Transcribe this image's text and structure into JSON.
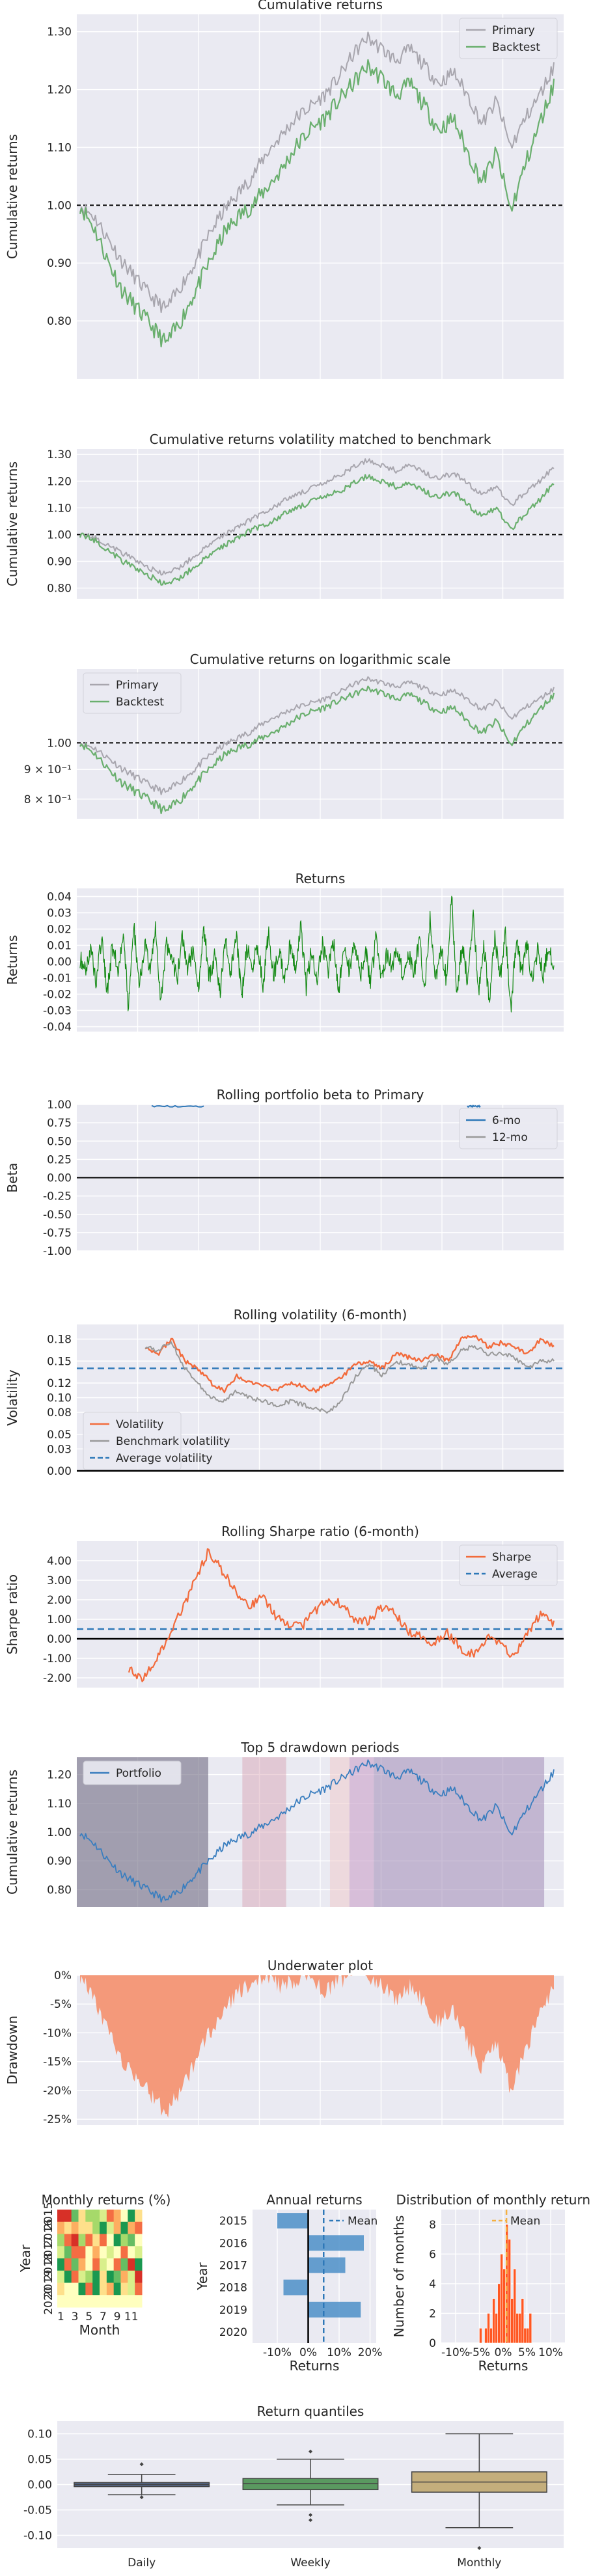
{
  "colors": {
    "primary": "#a8a6ae",
    "backtest": "#6aaf6e",
    "returns": "#148a14",
    "volatility": "#f26b3c",
    "benchmark_vol": "#999999",
    "average": "#2e78b8",
    "portfolio": "#3a7ebf",
    "underwater": "#f4997a",
    "hist": "#ff5722",
    "box_daily": "#55678a",
    "box_weekly": "#5a9960",
    "box_monthly": "#c4ae7c"
  },
  "chart_data": [
    {
      "type": "line",
      "title": "Cumulative returns",
      "ylabel": "Cumulative returns",
      "ylim": [
        0.7,
        1.33
      ],
      "yticks": [
        0.8,
        0.9,
        1.0,
        1.1,
        1.2,
        1.3
      ],
      "ytick_labels": [
        "0.80",
        "0.90",
        "1.00",
        "1.10",
        "1.20",
        "1.30"
      ],
      "hline": 1.0,
      "legend": "top-right",
      "series": [
        {
          "name": "Primary",
          "color": "primary",
          "values": [
            1.0,
            0.98,
            0.94,
            0.9,
            0.87,
            0.84,
            0.82,
            0.86,
            0.9,
            0.95,
            0.99,
            1.02,
            1.05,
            1.09,
            1.12,
            1.15,
            1.17,
            1.19,
            1.22,
            1.26,
            1.29,
            1.27,
            1.25,
            1.27,
            1.24,
            1.21,
            1.23,
            1.19,
            1.14,
            1.18,
            1.1,
            1.15,
            1.19,
            1.24
          ]
        },
        {
          "name": "Backtest",
          "color": "backtest",
          "values": [
            1.0,
            0.96,
            0.9,
            0.85,
            0.82,
            0.79,
            0.76,
            0.8,
            0.85,
            0.9,
            0.95,
            0.98,
            1.0,
            1.03,
            1.06,
            1.1,
            1.13,
            1.15,
            1.18,
            1.21,
            1.24,
            1.22,
            1.19,
            1.21,
            1.17,
            1.13,
            1.15,
            1.09,
            1.04,
            1.09,
            0.99,
            1.07,
            1.14,
            1.21
          ]
        }
      ]
    },
    {
      "type": "line",
      "title": "Cumulative returns volatility matched to benchmark",
      "ylabel": "Cumulative returns",
      "ylim": [
        0.76,
        1.32
      ],
      "yticks": [
        0.8,
        0.9,
        1.0,
        1.1,
        1.2,
        1.3
      ],
      "ytick_labels": [
        "0.80",
        "0.90",
        "1.00",
        "1.10",
        "1.20",
        "1.30"
      ],
      "hline": 1.0,
      "series": [
        {
          "name": "Primary",
          "color": "primary",
          "values": [
            1.0,
            0.99,
            0.96,
            0.93,
            0.9,
            0.87,
            0.85,
            0.88,
            0.92,
            0.96,
            1.0,
            1.03,
            1.06,
            1.09,
            1.12,
            1.15,
            1.17,
            1.19,
            1.22,
            1.25,
            1.28,
            1.26,
            1.24,
            1.26,
            1.23,
            1.21,
            1.23,
            1.19,
            1.15,
            1.18,
            1.11,
            1.16,
            1.2,
            1.25
          ]
        },
        {
          "name": "Backtest",
          "color": "backtest",
          "values": [
            1.0,
            0.98,
            0.94,
            0.9,
            0.87,
            0.84,
            0.81,
            0.84,
            0.88,
            0.92,
            0.96,
            0.99,
            1.02,
            1.04,
            1.07,
            1.1,
            1.12,
            1.14,
            1.16,
            1.19,
            1.22,
            1.2,
            1.18,
            1.19,
            1.16,
            1.14,
            1.16,
            1.11,
            1.07,
            1.1,
            1.02,
            1.08,
            1.13,
            1.19
          ]
        }
      ]
    },
    {
      "type": "line",
      "title": "Cumulative returns on logarithmic scale",
      "yscale": "log",
      "ylim": [
        0.74,
        1.34
      ],
      "yticks": [
        0.8,
        0.9,
        1.0
      ],
      "ytick_labels": [
        "8 × 10⁻¹",
        "9 × 10⁻¹",
        "1.00"
      ],
      "hline": 1.0,
      "legend": "top-left",
      "series": [
        {
          "name": "Primary",
          "color": "primary",
          "values": [
            1.0,
            0.98,
            0.94,
            0.9,
            0.87,
            0.84,
            0.82,
            0.86,
            0.9,
            0.95,
            0.99,
            1.02,
            1.05,
            1.09,
            1.12,
            1.15,
            1.17,
            1.19,
            1.22,
            1.26,
            1.29,
            1.27,
            1.25,
            1.27,
            1.24,
            1.21,
            1.23,
            1.19,
            1.14,
            1.18,
            1.1,
            1.15,
            1.19,
            1.24
          ]
        },
        {
          "name": "Backtest",
          "color": "backtest",
          "values": [
            1.0,
            0.96,
            0.9,
            0.85,
            0.82,
            0.79,
            0.76,
            0.8,
            0.85,
            0.9,
            0.95,
            0.98,
            1.0,
            1.03,
            1.06,
            1.1,
            1.13,
            1.15,
            1.18,
            1.21,
            1.24,
            1.22,
            1.19,
            1.21,
            1.17,
            1.13,
            1.15,
            1.09,
            1.04,
            1.09,
            0.99,
            1.07,
            1.14,
            1.21
          ]
        }
      ]
    },
    {
      "type": "line",
      "title": "Returns",
      "ylabel": "Returns",
      "ylim": [
        -0.043,
        0.045
      ],
      "yticks": [
        -0.04,
        -0.03,
        -0.02,
        -0.01,
        0.0,
        0.01,
        0.02,
        0.03,
        0.04
      ],
      "ytick_labels": [
        "-0.04",
        "-0.03",
        "-0.02",
        "-0.01",
        "0.00",
        "0.01",
        "0.02",
        "0.03",
        "0.04"
      ],
      "series": [
        {
          "name": "",
          "color": "returns",
          "values": [
            0.002,
            -0.005,
            0.008,
            -0.012,
            0.015,
            -0.02,
            0.01,
            -0.006,
            0.018,
            -0.03,
            0.022,
            -0.015,
            0.012,
            -0.008,
            0.02,
            -0.025,
            0.01,
            0.006,
            -0.012,
            0.014,
            -0.004,
            0.008,
            -0.015,
            0.02,
            -0.01,
            0.005,
            -0.018,
            0.012,
            -0.006,
            0.016,
            -0.022,
            0.01,
            -0.003,
            0.009,
            -0.014,
            0.018,
            -0.008,
            0.006,
            -0.012,
            0.01,
            -0.005,
            0.022,
            -0.016,
            0.008,
            -0.01,
            0.012,
            -0.007,
            0.014,
            -0.02,
            0.01,
            -0.006,
            0.012,
            -0.009,
            0.007,
            -0.013,
            0.016,
            -0.01,
            0.005,
            -0.004,
            0.009,
            -0.011,
            0.006,
            -0.008,
            0.013,
            -0.016,
            0.028,
            -0.012,
            0.008,
            -0.01,
            0.04,
            -0.02,
            0.012,
            -0.015,
            0.03,
            -0.018,
            0.01,
            -0.024,
            0.014,
            -0.01,
            0.018,
            -0.028,
            0.012,
            -0.006,
            0.01,
            -0.014,
            0.008,
            -0.01,
            0.012,
            -0.006
          ]
        }
      ]
    },
    {
      "type": "line",
      "title": "Rolling portfolio beta to Primary",
      "ylabel": "Beta",
      "ylim": [
        -1.0,
        1.0
      ],
      "yticks": [
        -1.0,
        -0.75,
        -0.5,
        -0.25,
        0.0,
        0.25,
        0.5,
        0.75,
        1.0
      ],
      "ytick_labels": [
        "-1.00",
        "-0.75",
        "-0.50",
        "-0.25",
        "0.00",
        "0.25",
        "0.50",
        "0.75",
        "1.00"
      ],
      "hline": 0.0,
      "legend": "top-right",
      "series": [
        {
          "name": "6-mo",
          "color": "average",
          "values": [
            0.98,
            0.97,
            0.99,
            0.98,
            0.97,
            0.98,
            0.99
          ]
        },
        {
          "name": "12-mo",
          "color": "benchmark_vol",
          "values": []
        }
      ]
    },
    {
      "type": "line",
      "title": "Rolling volatility (6-month)",
      "ylabel": "Volatility",
      "ylim": [
        0.0,
        0.2
      ],
      "yticks": [
        0.0,
        0.03,
        0.05,
        0.08,
        0.1,
        0.12,
        0.15,
        0.18
      ],
      "ytick_labels": [
        "0.00",
        "0.03",
        "0.05",
        "0.08",
        "0.10",
        "0.12",
        "0.15",
        "0.18"
      ],
      "hline": 0.14,
      "legend": "bottom-left",
      "series": [
        {
          "name": "Volatility",
          "color": "volatility",
          "values": [
            0.17,
            0.16,
            0.18,
            0.15,
            0.14,
            0.12,
            0.11,
            0.13,
            0.12,
            0.115,
            0.11,
            0.12,
            0.115,
            0.11,
            0.12,
            0.13,
            0.145,
            0.15,
            0.14,
            0.16,
            0.155,
            0.15,
            0.16,
            0.15,
            0.18,
            0.185,
            0.17,
            0.175,
            0.17,
            0.16,
            0.18,
            0.17
          ]
        },
        {
          "name": "Benchmark volatility",
          "color": "benchmark_vol",
          "values": [
            0.17,
            0.165,
            0.175,
            0.14,
            0.12,
            0.1,
            0.095,
            0.11,
            0.1,
            0.095,
            0.09,
            0.095,
            0.09,
            0.085,
            0.08,
            0.1,
            0.13,
            0.145,
            0.13,
            0.15,
            0.145,
            0.14,
            0.155,
            0.145,
            0.165,
            0.17,
            0.16,
            0.16,
            0.155,
            0.14,
            0.15,
            0.15
          ]
        },
        {
          "name": "Average volatility",
          "color": "average",
          "values": []
        }
      ]
    },
    {
      "type": "line",
      "title": "Rolling Sharpe ratio (6-month)",
      "ylabel": "Sharpe ratio",
      "ylim": [
        -2.5,
        5.0
      ],
      "yticks": [
        -2.0,
        -1.0,
        0.0,
        1.0,
        2.0,
        3.0,
        4.0
      ],
      "ytick_labels": [
        "-2.00",
        "-1.00",
        "0.00",
        "1.00",
        "2.00",
        "3.00",
        "4.00"
      ],
      "hline": 0.5,
      "legend": "top-right",
      "series": [
        {
          "name": "Sharpe",
          "color": "volatility",
          "values": [
            -1.5,
            -2.1,
            -1.2,
            0.2,
            1.5,
            3.0,
            4.5,
            3.5,
            2.5,
            1.6,
            2.2,
            1.2,
            0.8,
            0.6,
            1.4,
            2.0,
            1.8,
            1.0,
            0.9,
            1.6,
            1.3,
            0.4,
            0.1,
            -0.2,
            0.3,
            -0.5,
            -0.8,
            0.1,
            -0.3,
            -0.9,
            0.2,
            1.3,
            0.8
          ]
        },
        {
          "name": "Average",
          "color": "average",
          "values": []
        }
      ]
    },
    {
      "type": "line",
      "title": "Top 5 drawdown periods",
      "ylabel": "Cumulative returns",
      "ylim": [
        0.74,
        1.26
      ],
      "yticks": [
        0.8,
        0.9,
        1.0,
        1.1,
        1.2
      ],
      "ytick_labels": [
        "0.80",
        "0.90",
        "1.00",
        "1.10",
        "1.20"
      ],
      "legend": "top-left",
      "series": [
        {
          "name": "Portfolio",
          "color": "portfolio",
          "values": [
            1.0,
            0.96,
            0.9,
            0.85,
            0.82,
            0.79,
            0.76,
            0.8,
            0.85,
            0.9,
            0.95,
            0.98,
            1.0,
            1.03,
            1.06,
            1.1,
            1.13,
            1.15,
            1.18,
            1.21,
            1.24,
            1.22,
            1.19,
            1.21,
            1.17,
            1.13,
            1.15,
            1.09,
            1.04,
            1.09,
            0.99,
            1.07,
            1.14,
            1.21
          ]
        }
      ]
    },
    {
      "type": "area",
      "title": "Underwater plot",
      "ylabel": "Drawdown",
      "ylim": [
        -0.26,
        0.0
      ],
      "yticks": [
        0.0,
        -0.05,
        -0.1,
        -0.15,
        -0.2,
        -0.25
      ],
      "ytick_labels": [
        "0%",
        "-5%",
        "-10%",
        "-15%",
        "-20%",
        "-25%"
      ],
      "series": [
        {
          "name": "",
          "color": "underwater",
          "values": [
            0.0,
            -0.04,
            -0.1,
            -0.15,
            -0.18,
            -0.21,
            -0.24,
            -0.2,
            -0.15,
            -0.1,
            -0.06,
            -0.03,
            -0.01,
            0.0,
            -0.02,
            -0.01,
            0.0,
            -0.03,
            -0.01,
            0.0,
            0.0,
            -0.02,
            -0.04,
            -0.02,
            -0.05,
            -0.08,
            -0.06,
            -0.12,
            -0.16,
            -0.12,
            -0.2,
            -0.13,
            -0.07,
            -0.02
          ]
        }
      ]
    },
    {
      "type": "heatmap",
      "title": "Monthly returns (%)",
      "xlabel": "Month",
      "ylabel": "Year",
      "xticks": [
        "1",
        "3",
        "5",
        "7",
        "9",
        "11"
      ],
      "yticks": [
        "2015",
        "2016",
        "2017",
        "2018",
        "2019",
        "2020"
      ]
    },
    {
      "type": "bar",
      "title": "Annual returns",
      "xlabel": "Returns",
      "ylabel": "Year",
      "categories": [
        "2015",
        "2016",
        "2017",
        "2018",
        "2019",
        "2020"
      ],
      "values": [
        -0.1,
        0.18,
        0.12,
        -0.08,
        0.17,
        0.0
      ],
      "xticks": [
        "-10%",
        "0%",
        "10%",
        "20%"
      ],
      "mean": 0.05,
      "legend": "Mean"
    },
    {
      "type": "bar",
      "title": "Distribution of monthly returns",
      "xlabel": "Returns",
      "ylabel": "Number of months",
      "xticks": [
        "-10%",
        "-5%",
        "0%",
        "5%",
        "10%"
      ],
      "yticks": [
        "0",
        "2",
        "4",
        "6",
        "8"
      ],
      "mean": 0.007,
      "legend": "Mean"
    },
    {
      "type": "box",
      "title": "Return quantiles",
      "categories": [
        "Daily",
        "Weekly",
        "Monthly"
      ],
      "yticks": [
        "-0.10",
        "-0.05",
        "0.00",
        "0.05",
        "0.10"
      ],
      "boxes": [
        {
          "q1": -0.004,
          "median": 0.0,
          "q3": 0.004,
          "lo": -0.02,
          "hi": 0.02
        },
        {
          "q1": -0.01,
          "median": 0.002,
          "q3": 0.012,
          "lo": -0.04,
          "hi": 0.05
        },
        {
          "q1": -0.015,
          "median": 0.005,
          "q3": 0.025,
          "lo": -0.085,
          "hi": 0.1
        }
      ]
    }
  ]
}
